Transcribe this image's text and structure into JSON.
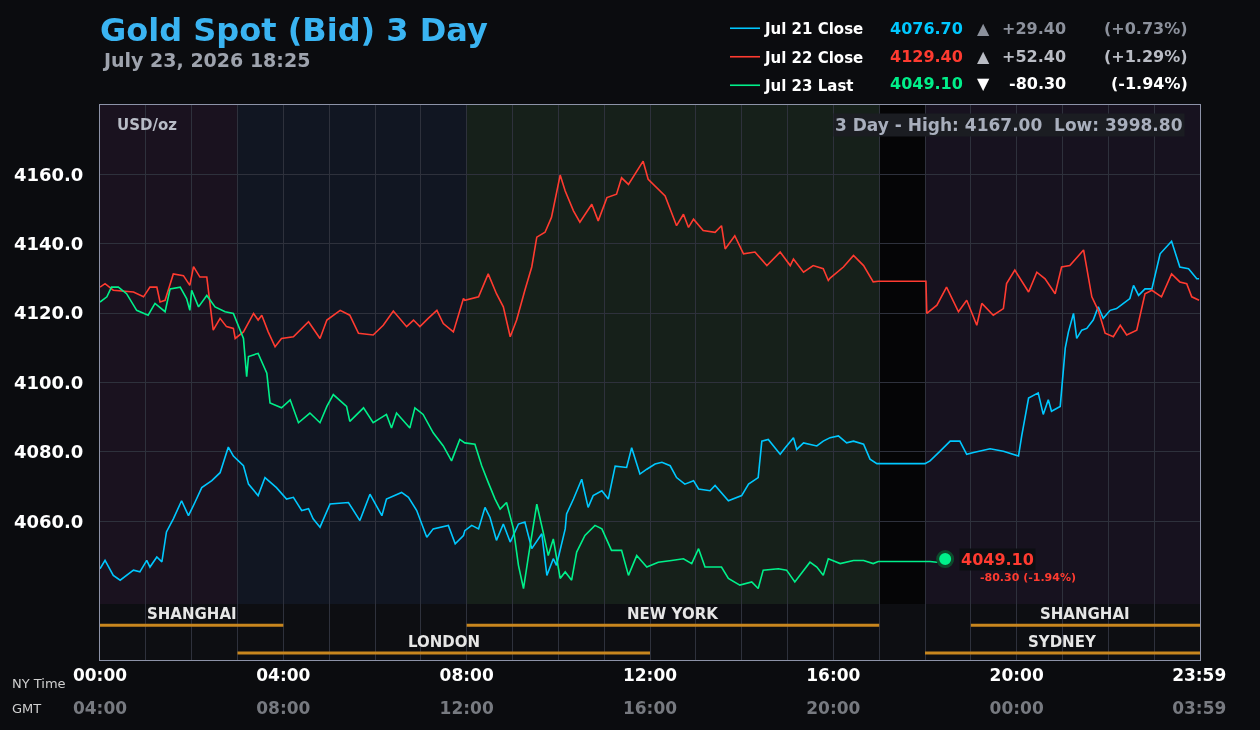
{
  "chart_data": {
    "type": "line",
    "title": "Gold Spot (Bid) 3 Day",
    "subtitle": "July 23, 2026 18:25",
    "xlim": [
      0,
      24
    ],
    "xticks": [
      {
        "value": 0,
        "label": "00:00"
      },
      {
        "value": 1,
        "label": null
      },
      {
        "value": 2,
        "label": null
      },
      {
        "value": 3,
        "label": null
      },
      {
        "value": 4,
        "label": "04:00"
      },
      {
        "value": 5,
        "label": null
      },
      {
        "value": 6,
        "label": null
      },
      {
        "value": 7,
        "label": null
      },
      {
        "value": 8,
        "label": "08:00"
      },
      {
        "value": 9,
        "label": null
      },
      {
        "value": 10,
        "label": null
      },
      {
        "value": 11,
        "label": null
      },
      {
        "value": 12,
        "label": "12:00"
      },
      {
        "value": 13,
        "label": null
      },
      {
        "value": 14,
        "label": null
      },
      {
        "value": 15,
        "label": null
      },
      {
        "value": 16,
        "label": "16:00"
      },
      {
        "value": 17,
        "label": null
      },
      {
        "value": 18,
        "label": null
      },
      {
        "value": 19,
        "label": null
      },
      {
        "value": 20,
        "label": "20:00"
      },
      {
        "value": 21,
        "label": null
      },
      {
        "value": 22,
        "label": null
      },
      {
        "value": 23,
        "label": null
      },
      {
        "value": 23.983,
        "label": "23:59"
      }
    ],
    "x2lim": [
      "2026-07-23T04:00",
      "2026-07-24T04:00"
    ],
    "x2ticks": [
      {
        "value": "2026-07-23T04:00",
        "label": "04:00"
      },
      {
        "value": "2026-07-23T08:00",
        "label": "08:00"
      },
      {
        "value": "2026-07-23T12:00",
        "label": "12:00"
      },
      {
        "value": "2026-07-23T16:00",
        "label": "16:00"
      },
      {
        "value": "2026-07-23T20:00",
        "label": "20:00"
      },
      {
        "value": "2026-07-24T00:00",
        "label": "00:00"
      },
      {
        "value": "2026-07-24T03:59",
        "label": "03:59"
      }
    ],
    "ylim": [
      4020,
      4180
    ],
    "yticks": [
      {
        "value": 4060,
        "label": "4060.0"
      },
      {
        "value": 4080,
        "label": "4080.0"
      },
      {
        "value": 4100,
        "label": "4100.0"
      },
      {
        "value": 4120,
        "label": "4120.0"
      },
      {
        "value": 4140,
        "label": "4140.0"
      },
      {
        "value": 4160,
        "label": "4160.0"
      }
    ],
    "grid": true,
    "legend": "top right",
    "series": [
      {
        "name": "Jul 21 Close",
        "color": "#00c8ff",
        "x": [
          0,
          0.11,
          0.29,
          0.44,
          0.73,
          0.87,
          1.02,
          1.09,
          1.24,
          1.35,
          1.45,
          1.6,
          1.78,
          1.93,
          2.07,
          2.22,
          2.44,
          2.62,
          2.8,
          2.91,
          3.13,
          3.24,
          3.45,
          3.6,
          3.85,
          4.07,
          4.22,
          4.4,
          4.55,
          4.65,
          4.8,
          5.02,
          5.42,
          5.67,
          5.89,
          6.15,
          6.25,
          6.58,
          6.73,
          6.91,
          7.13,
          7.27,
          7.6,
          7.75,
          7.93,
          7.96,
          8.11,
          8.26,
          8.4,
          8.51,
          8.65,
          8.8,
          8.95,
          9.13,
          9.27,
          9.42,
          9.64,
          9.75,
          9.89,
          9.96,
          10.15,
          10.18,
          10.33,
          10.51,
          10.65,
          10.76,
          10.95,
          11.09,
          11.24,
          11.49,
          11.6,
          11.78,
          11.93,
          12.11,
          12.26,
          12.44,
          12.58,
          12.76,
          12.95,
          13.06,
          13.31,
          13.42,
          13.71,
          14.0,
          14.15,
          14.36,
          14.44,
          14.58,
          14.84,
          14.95,
          15.13,
          15.2,
          15.35,
          15.64,
          15.78,
          15.93,
          16.11,
          16.29,
          16.44,
          16.66,
          16.8,
          16.95,
          18.0,
          18.11,
          18.33,
          18.55,
          18.76,
          18.91,
          19.06,
          19.42,
          19.71,
          20.04,
          20.11,
          20.26,
          20.47,
          20.58,
          20.69,
          20.76,
          20.95,
          21.06,
          21.13,
          21.24,
          21.31,
          21.42,
          21.53,
          21.67,
          21.78,
          21.89,
          22.04,
          22.18,
          22.33,
          22.47,
          22.55,
          22.66,
          22.8,
          22.95,
          23.13,
          23.38,
          23.56,
          23.75,
          23.93,
          23.98
        ],
        "values": [
          4046.3,
          4048.7,
          4044.4,
          4043.0,
          4045.9,
          4045.4,
          4048.7,
          4046.8,
          4049.7,
          4048.3,
          4056.9,
          4060.7,
          4065.9,
          4061.6,
          4065.4,
          4069.7,
          4071.7,
          4074.0,
          4081.4,
          4078.8,
          4076.0,
          4070.7,
          4067.4,
          4072.6,
          4069.7,
          4066.4,
          4066.9,
          4063.1,
          4063.6,
          4060.7,
          4058.3,
          4065.0,
          4065.4,
          4060.2,
          4067.8,
          4061.6,
          4066.4,
          4068.3,
          4066.9,
          4063.1,
          4055.4,
          4057.8,
          4058.8,
          4053.5,
          4055.9,
          4057.3,
          4058.8,
          4057.8,
          4064.0,
          4061.1,
          4054.5,
          4059.2,
          4054.0,
          4059.2,
          4059.8,
          4052.1,
          4056.4,
          4044.4,
          4049.2,
          4047.3,
          4057.8,
          4062.1,
          4066.4,
          4072.1,
          4064.0,
          4067.4,
          4068.8,
          4066.4,
          4075.9,
          4075.5,
          4081.2,
          4073.6,
          4075.0,
          4076.5,
          4077.0,
          4076.0,
          4072.6,
          4070.7,
          4071.7,
          4069.3,
          4068.8,
          4070.3,
          4065.9,
          4067.4,
          4070.7,
          4072.6,
          4083.1,
          4083.6,
          4079.3,
          4081.2,
          4084.1,
          4080.7,
          4082.6,
          4081.7,
          4083.1,
          4084.1,
          4084.6,
          4082.6,
          4083.1,
          4082.2,
          4077.9,
          4076.6,
          4076.6,
          4077.4,
          4080.2,
          4083.1,
          4083.1,
          4079.3,
          4079.8,
          4080.9,
          4080.2,
          4078.8,
          4084.6,
          4095.5,
          4097.0,
          4090.8,
          4095.0,
          4091.7,
          4093.1,
          4109.9,
          4114.6,
          4119.9,
          4112.7,
          4115.1,
          4115.6,
          4118.0,
          4121.8,
          4118.5,
          4120.8,
          4121.3,
          4122.8,
          4124.2,
          4128.0,
          4125.1,
          4127.0,
          4127.0,
          4137.1,
          4140.7,
          4133.3,
          4132.8,
          4129.9,
          4129.9
        ]
      },
      {
        "name": "Jul 22 Close",
        "color": "#ff3b30",
        "x": [
          0,
          0.11,
          0.29,
          0.73,
          0.95,
          1.09,
          1.24,
          1.31,
          1.42,
          1.6,
          1.82,
          1.96,
          2.04,
          2.18,
          2.33,
          2.47,
          2.62,
          2.76,
          2.91,
          2.95,
          3.13,
          3.35,
          3.45,
          3.53,
          3.67,
          3.82,
          3.96,
          4.22,
          4.55,
          4.8,
          4.95,
          5.24,
          5.45,
          5.64,
          5.96,
          6.18,
          6.4,
          6.69,
          6.84,
          6.98,
          7.16,
          7.35,
          7.49,
          7.71,
          7.93,
          7.96,
          8.26,
          8.47,
          8.65,
          8.8,
          8.95,
          9.09,
          9.27,
          9.42,
          9.53,
          9.71,
          9.85,
          10.04,
          10.15,
          10.33,
          10.47,
          10.73,
          10.87,
          11.06,
          11.27,
          11.38,
          11.53,
          11.85,
          11.96,
          12.33,
          12.58,
          12.73,
          12.84,
          12.95,
          13.16,
          13.42,
          13.56,
          13.64,
          13.85,
          14.04,
          14.29,
          14.55,
          14.84,
          15.06,
          15.13,
          15.35,
          15.56,
          15.78,
          15.89,
          15.93,
          16.22,
          16.44,
          16.66,
          16.87,
          16.98,
          18.02,
          18.04,
          18.26,
          18.47,
          18.73,
          18.91,
          19.13,
          19.24,
          19.49,
          19.71,
          19.78,
          19.96,
          20.26,
          20.44,
          20.62,
          20.84,
          20.98,
          21.16,
          21.46,
          21.64,
          21.78,
          21.93,
          22.11,
          22.26,
          22.4,
          22.62,
          22.8,
          22.95,
          23.16,
          23.38,
          23.56,
          23.71,
          23.82,
          23.98
        ],
        "values": [
          4127.5,
          4128.5,
          4126.6,
          4126.1,
          4124.7,
          4127.5,
          4127.5,
          4123.2,
          4123.7,
          4131.3,
          4130.8,
          4128.0,
          4133.4,
          4130.4,
          4130.4,
          4115.1,
          4118.5,
          4116.1,
          4115.6,
          4112.7,
          4114.6,
          4119.9,
          4118.0,
          4119.4,
          4114.6,
          4110.3,
          4112.7,
          4113.2,
          4117.5,
          4112.7,
          4118.0,
          4120.8,
          4119.4,
          4114.2,
          4113.7,
          4116.5,
          4120.6,
          4116.1,
          4118.0,
          4116.1,
          4118.5,
          4120.8,
          4117.0,
          4114.6,
          4124.2,
          4123.7,
          4124.7,
          4131.3,
          4125.6,
          4121.8,
          4113.2,
          4118.0,
          4126.6,
          4133.3,
          4141.9,
          4143.3,
          4147.6,
          4159.8,
          4155.2,
          4149.5,
          4146.2,
          4151.4,
          4146.6,
          4153.3,
          4154.3,
          4159.0,
          4157.1,
          4163.8,
          4158.6,
          4153.8,
          4145.2,
          4148.5,
          4144.7,
          4147.1,
          4143.8,
          4143.3,
          4145.2,
          4138.5,
          4142.3,
          4137.1,
          4137.6,
          4133.7,
          4137.6,
          4133.7,
          4135.6,
          4131.8,
          4133.7,
          4132.8,
          4129.4,
          4130.1,
          4133.3,
          4136.6,
          4133.7,
          4129.0,
          4129.2,
          4129.2,
          4119.9,
          4122.3,
          4127.5,
          4120.4,
          4123.7,
          4116.5,
          4122.8,
          4119.4,
          4121.3,
          4128.5,
          4132.4,
          4126.1,
          4131.8,
          4129.9,
          4125.6,
          4133.3,
          4133.7,
          4138.2,
          4124.7,
          4120.8,
          4114.2,
          4113.2,
          4116.5,
          4113.7,
          4115.1,
          4125.6,
          4126.6,
          4124.7,
          4131.3,
          4129.0,
          4128.5,
          4124.7,
          4123.7
        ]
      },
      {
        "name": "Jul 23 Last",
        "color": "#00f08a",
        "x": [
          0,
          0.15,
          0.25,
          0.4,
          0.58,
          0.8,
          1.05,
          1.2,
          1.42,
          1.53,
          1.75,
          1.89,
          1.96,
          2.0,
          2.15,
          2.33,
          2.51,
          2.73,
          2.91,
          3.13,
          3.2,
          3.24,
          3.45,
          3.64,
          3.71,
          3.96,
          4.15,
          4.33,
          4.58,
          4.8,
          4.95,
          5.09,
          5.38,
          5.45,
          5.75,
          5.96,
          6.25,
          6.36,
          6.47,
          6.76,
          6.87,
          7.05,
          7.27,
          7.49,
          7.67,
          7.85,
          7.96,
          8.18,
          8.33,
          8.47,
          8.62,
          8.73,
          8.87,
          9.02,
          9.13,
          9.24,
          9.35,
          9.53,
          9.67,
          9.78,
          9.89,
          10.04,
          10.15,
          10.29,
          10.4,
          10.58,
          10.8,
          10.95,
          11.16,
          11.38,
          11.53,
          11.71,
          11.93,
          12.18,
          12.47,
          12.73,
          12.91,
          13.06,
          13.2,
          13.56,
          13.71,
          13.96,
          14.22,
          14.36,
          14.47,
          14.8,
          14.98,
          15.16,
          15.49,
          15.64,
          15.78,
          15.89,
          16.15,
          16.44,
          16.66,
          16.87,
          16.98,
          18.11,
          18.26,
          18.44
        ],
        "values": [
          4123.2,
          4124.7,
          4127.5,
          4127.5,
          4125.6,
          4120.8,
          4119.4,
          4122.8,
          4120.4,
          4127.0,
          4127.5,
          4124.2,
          4120.8,
          4126.6,
          4121.8,
          4125.1,
          4121.8,
          4120.4,
          4119.9,
          4112.7,
          4101.7,
          4107.5,
          4108.4,
          4102.7,
          4094.1,
          4092.7,
          4095.0,
          4088.4,
          4091.2,
          4088.4,
          4093.1,
          4096.5,
          4093.1,
          4088.8,
          4092.7,
          4088.4,
          4090.8,
          4086.9,
          4091.2,
          4086.9,
          4092.7,
          4090.8,
          4085.5,
          4081.7,
          4077.4,
          4083.6,
          4082.6,
          4082.2,
          4075.9,
          4071.2,
          4066.4,
          4063.5,
          4065.4,
          4057.8,
          4047.3,
          4040.6,
          4050.1,
          4064.9,
          4056.8,
          4050.1,
          4054.9,
          4043.5,
          4045.4,
          4043.0,
          4051.1,
          4055.9,
          4058.8,
          4057.8,
          4051.6,
          4051.6,
          4044.4,
          4050.1,
          4046.8,
          4048.2,
          4048.7,
          4049.2,
          4047.8,
          4052.1,
          4046.8,
          4046.8,
          4043.5,
          4041.6,
          4042.5,
          4040.6,
          4045.9,
          4046.3,
          4045.9,
          4042.5,
          4048.2,
          4046.8,
          4044.4,
          4049.2,
          4047.8,
          4048.7,
          4048.7,
          4047.8,
          4048.4,
          4048.4,
          4048.2,
          4049.1
        ]
      },
      {
        "type": "scatter",
        "color": "#00f08a",
        "x": [
          18.44
        ],
        "values": [
          4049.1
        ]
      },
      {
        "type": "step",
        "name": "SHANGHAI",
        "color": "#c8861e",
        "x": [
          0,
          4
        ],
        "values": [
          4030,
          4030
        ]
      },
      {
        "type": "step",
        "name": "LONDON",
        "color": "#c8861e",
        "x": [
          3,
          12
        ],
        "values": [
          4022,
          4022
        ]
      },
      {
        "type": "step",
        "name": "NEW YORK",
        "color": "#c8861e",
        "x": [
          8,
          17
        ],
        "values": [
          4030,
          4030
        ]
      },
      {
        "type": "step",
        "name": "SHANGHAI",
        "color": "#c8861e",
        "x": [
          19,
          24
        ],
        "values": [
          4030,
          4030
        ]
      },
      {
        "type": "step",
        "name": "SYDNEY",
        "color": "#c8861e",
        "x": [
          18,
          24
        ],
        "values": [
          4022,
          4022
        ]
      }
    ],
    "bands": [
      {
        "axis": "x",
        "from": 0,
        "to": 3,
        "color": "#1a121f"
      },
      {
        "axis": "x",
        "from": 3,
        "to": 8,
        "color": "#111622"
      },
      {
        "axis": "x",
        "from": 8,
        "to": 17,
        "color": "#16201a"
      },
      {
        "axis": "x",
        "from": 17,
        "to": 18,
        "color": "#050506"
      },
      {
        "axis": "x",
        "from": 18,
        "to": 24,
        "color": "#17121f"
      }
    ],
    "annotations": [
      "USD/oz",
      "3 Day - High: 4167.00  Low: 3998.80",
      "NY Time",
      "GMT",
      {
        "text": "4049.10",
        "x": 18.44,
        "y": 4049.1
      },
      "-80.30 (-1.94%)",
      "4076.70",
      "▲",
      "+29.40",
      "(+0.73%)",
      "4129.40",
      "▲",
      "+52.40",
      "(+1.29%)",
      "4049.10",
      "▼",
      "-80.30",
      "(-1.94%)"
    ]
  }
}
